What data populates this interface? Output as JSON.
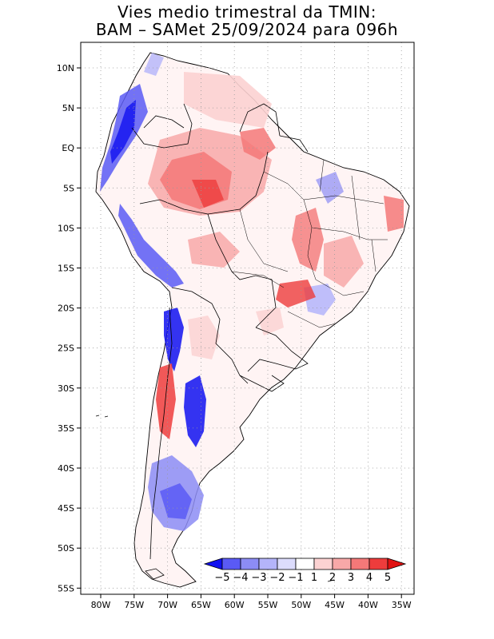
{
  "title": {
    "line1": "Vies medio trimestral da TMIN:",
    "line2": "BAM – SAMet 25/09/2024  para 096h"
  },
  "map": {
    "lon_ticks": [
      "80W",
      "75W",
      "70W",
      "65W",
      "60W",
      "55W",
      "50W",
      "45W",
      "40W",
      "35W"
    ],
    "lat_ticks": [
      "10N",
      "5N",
      "EQ",
      "5S",
      "10S",
      "15S",
      "20S",
      "25S",
      "30S",
      "35S",
      "40S",
      "45S",
      "50S",
      "55S"
    ],
    "grid": "dotted"
  },
  "colorbar": {
    "labels": [
      "−5",
      "−4",
      "−3",
      "−2",
      "−1",
      "1",
      "2",
      "3",
      "4",
      "5"
    ],
    "colors": [
      "#1010f0",
      "#5a5af5",
      "#8c8cf5",
      "#b4b4fa",
      "#dcdcfc",
      "#ffffff",
      "#fcd2d2",
      "#f8a8a8",
      "#f47878",
      "#ee3c3c",
      "#e01010"
    ]
  }
}
